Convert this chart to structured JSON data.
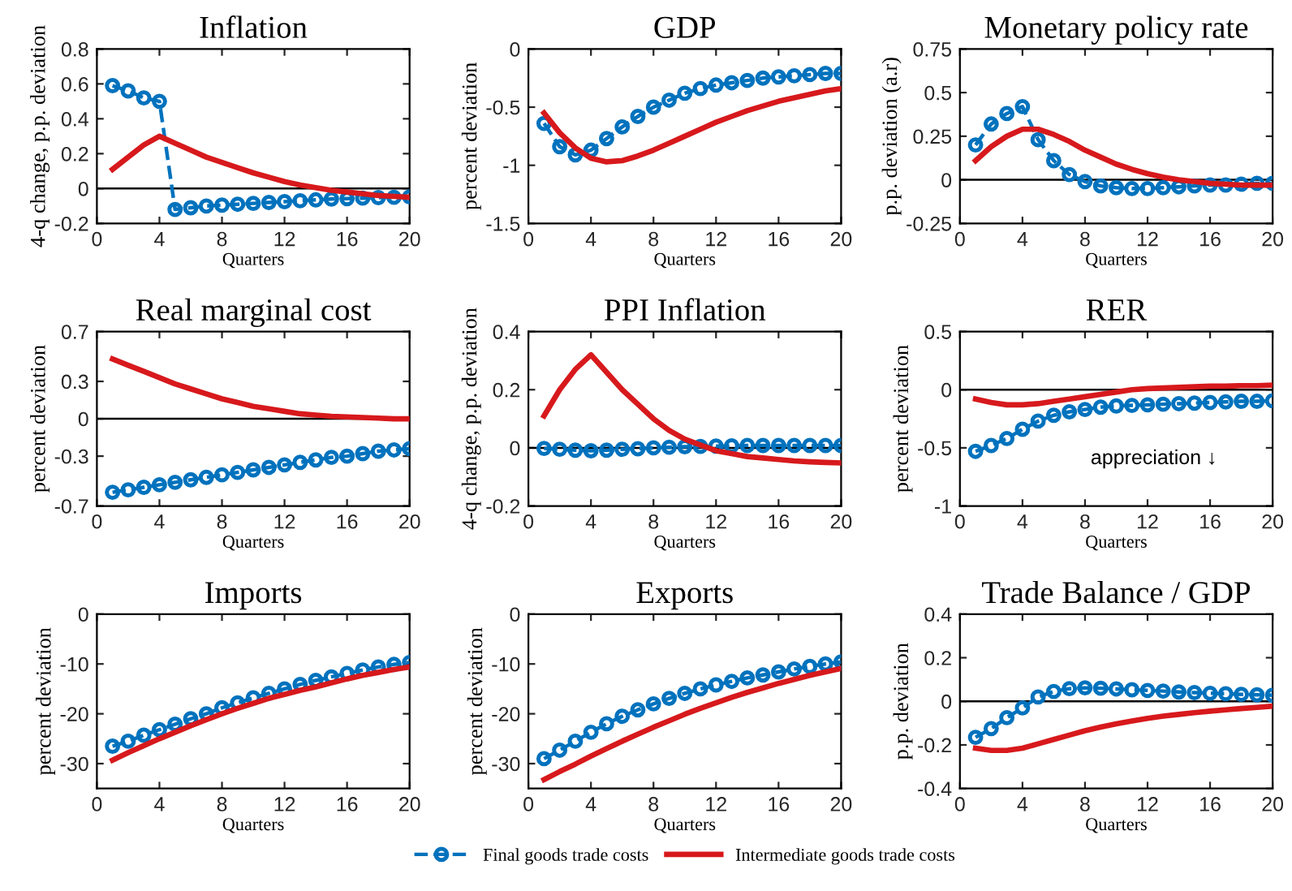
{
  "chart_data": [
    {
      "type": "line",
      "title": "Inflation",
      "xlabel": "Quarters",
      "ylabel": "4-q change, p.p. deviation",
      "x": [
        1,
        2,
        3,
        4,
        5,
        6,
        7,
        8,
        9,
        10,
        11,
        12,
        13,
        14,
        15,
        16,
        17,
        18,
        19,
        20
      ],
      "xlim": [
        0,
        20
      ],
      "xticks": [
        0,
        4,
        8,
        12,
        16,
        20
      ],
      "ylim": [
        -0.2,
        0.8
      ],
      "yticks": [
        -0.2,
        0,
        0.2,
        0.4,
        0.6,
        0.8
      ],
      "ref_lines": [
        {
          "axis": "y",
          "value": 0,
          "color": "#000000"
        }
      ],
      "series": [
        {
          "color": "#0072bd",
          "marker": "circle",
          "line_style": "dashed",
          "values": [
            0.59,
            0.56,
            0.52,
            0.5,
            -0.12,
            -0.11,
            -0.1,
            -0.095,
            -0.09,
            -0.085,
            -0.08,
            -0.075,
            -0.07,
            -0.065,
            -0.06,
            -0.058,
            -0.055,
            -0.052,
            -0.05,
            -0.048
          ]
        },
        {
          "color": "#d7191c",
          "marker": "none",
          "line_style": "solid",
          "values": [
            0.11,
            0.18,
            0.25,
            0.3,
            0.26,
            0.22,
            0.18,
            0.15,
            0.12,
            0.09,
            0.065,
            0.04,
            0.02,
            0.005,
            -0.01,
            -0.02,
            -0.03,
            -0.04,
            -0.045,
            -0.05
          ]
        }
      ]
    },
    {
      "type": "line",
      "title": "GDP",
      "xlabel": "Quarters",
      "ylabel": "percent deviation",
      "x": [
        1,
        2,
        3,
        4,
        5,
        6,
        7,
        8,
        9,
        10,
        11,
        12,
        13,
        14,
        15,
        16,
        17,
        18,
        19,
        20
      ],
      "xlim": [
        0,
        20
      ],
      "xticks": [
        0,
        4,
        8,
        12,
        16,
        20
      ],
      "ylim": [
        -1.5,
        0
      ],
      "yticks": [
        -1.5,
        -1,
        -0.5,
        0
      ],
      "series": [
        {
          "color": "#0072bd",
          "marker": "circle",
          "line_style": "dashed",
          "values": [
            -0.64,
            -0.84,
            -0.91,
            -0.87,
            -0.77,
            -0.67,
            -0.58,
            -0.5,
            -0.44,
            -0.38,
            -0.34,
            -0.31,
            -0.29,
            -0.27,
            -0.25,
            -0.24,
            -0.23,
            -0.22,
            -0.21,
            -0.21
          ]
        },
        {
          "color": "#d7191c",
          "marker": "none",
          "line_style": "solid",
          "values": [
            -0.55,
            -0.72,
            -0.85,
            -0.94,
            -0.97,
            -0.96,
            -0.92,
            -0.87,
            -0.81,
            -0.75,
            -0.69,
            -0.63,
            -0.58,
            -0.53,
            -0.49,
            -0.45,
            -0.42,
            -0.39,
            -0.36,
            -0.34
          ]
        }
      ]
    },
    {
      "type": "line",
      "title": "Monetary policy rate",
      "xlabel": "Quarters",
      "ylabel": "p.p. deviation (a.r)",
      "x": [
        1,
        2,
        3,
        4,
        5,
        6,
        7,
        8,
        9,
        10,
        11,
        12,
        13,
        14,
        15,
        16,
        17,
        18,
        19,
        20
      ],
      "xlim": [
        0,
        20
      ],
      "xticks": [
        0,
        4,
        8,
        12,
        16,
        20
      ],
      "ylim": [
        -0.25,
        0.75
      ],
      "yticks": [
        -0.25,
        0,
        0.25,
        0.5,
        0.75
      ],
      "ref_lines": [
        {
          "axis": "y",
          "value": 0,
          "color": "#000000"
        }
      ],
      "series": [
        {
          "color": "#0072bd",
          "marker": "circle",
          "line_style": "dashed",
          "values": [
            0.2,
            0.32,
            0.38,
            0.42,
            0.23,
            0.11,
            0.03,
            -0.01,
            -0.035,
            -0.045,
            -0.05,
            -0.05,
            -0.045,
            -0.04,
            -0.035,
            -0.03,
            -0.03,
            -0.025,
            -0.02,
            -0.02
          ]
        },
        {
          "color": "#d7191c",
          "marker": "none",
          "line_style": "solid",
          "values": [
            0.11,
            0.19,
            0.25,
            0.29,
            0.29,
            0.26,
            0.22,
            0.17,
            0.13,
            0.09,
            0.06,
            0.035,
            0.015,
            0.0,
            -0.01,
            -0.02,
            -0.025,
            -0.03,
            -0.03,
            -0.03
          ]
        }
      ]
    },
    {
      "type": "line",
      "title": "Real marginal cost",
      "xlabel": "Quarters",
      "ylabel": "percent deviation",
      "x": [
        1,
        2,
        3,
        4,
        5,
        6,
        7,
        8,
        9,
        10,
        11,
        12,
        13,
        14,
        15,
        16,
        17,
        18,
        19,
        20
      ],
      "xlim": [
        0,
        20
      ],
      "xticks": [
        0,
        4,
        8,
        12,
        16,
        20
      ],
      "ylim": [
        -0.7,
        0.7
      ],
      "yticks": [
        -0.7,
        -0.3,
        0,
        0.3,
        0.7
      ],
      "ref_lines": [
        {
          "axis": "y",
          "value": 0,
          "color": "#000000"
        }
      ],
      "series": [
        {
          "color": "#0072bd",
          "marker": "circle",
          "line_style": "dashed",
          "values": [
            -0.59,
            -0.57,
            -0.55,
            -0.53,
            -0.51,
            -0.49,
            -0.47,
            -0.45,
            -0.43,
            -0.41,
            -0.39,
            -0.37,
            -0.35,
            -0.33,
            -0.31,
            -0.3,
            -0.28,
            -0.26,
            -0.25,
            -0.24
          ]
        },
        {
          "color": "#d7191c",
          "marker": "none",
          "line_style": "solid",
          "values": [
            0.48,
            0.43,
            0.38,
            0.33,
            0.28,
            0.24,
            0.2,
            0.16,
            0.13,
            0.1,
            0.08,
            0.06,
            0.04,
            0.03,
            0.02,
            0.015,
            0.01,
            0.005,
            0.0,
            0.0
          ]
        }
      ]
    },
    {
      "type": "line",
      "title": "PPI Inflation",
      "xlabel": "Quarters",
      "ylabel": "4-q change, p.p. deviation",
      "x": [
        1,
        2,
        3,
        4,
        5,
        6,
        7,
        8,
        9,
        10,
        11,
        12,
        13,
        14,
        15,
        16,
        17,
        18,
        19,
        20
      ],
      "xlim": [
        0,
        20
      ],
      "xticks": [
        0,
        4,
        8,
        12,
        16,
        20
      ],
      "ylim": [
        -0.2,
        0.4
      ],
      "yticks": [
        -0.2,
        0,
        0.2,
        0.4
      ],
      "ref_lines": [
        {
          "axis": "y",
          "value": 0,
          "color": "#000000"
        }
      ],
      "series": [
        {
          "color": "#0072bd",
          "marker": "circle",
          "line_style": "dashed",
          "values": [
            -0.002,
            -0.005,
            -0.008,
            -0.01,
            -0.008,
            -0.005,
            -0.003,
            0,
            0.002,
            0.004,
            0.005,
            0.006,
            0.007,
            0.008,
            0.008,
            0.008,
            0.008,
            0.008,
            0.008,
            0.008
          ]
        },
        {
          "color": "#d7191c",
          "marker": "none",
          "line_style": "solid",
          "values": [
            0.11,
            0.2,
            0.27,
            0.32,
            0.26,
            0.2,
            0.15,
            0.1,
            0.06,
            0.03,
            0.01,
            -0.01,
            -0.02,
            -0.03,
            -0.035,
            -0.04,
            -0.045,
            -0.048,
            -0.05,
            -0.052
          ]
        }
      ]
    },
    {
      "type": "line",
      "title": "RER",
      "xlabel": "Quarters",
      "ylabel": "percent deviation",
      "annotations": [
        "appreciation ↓"
      ],
      "x": [
        1,
        2,
        3,
        4,
        5,
        6,
        7,
        8,
        9,
        10,
        11,
        12,
        13,
        14,
        15,
        16,
        17,
        18,
        19,
        20
      ],
      "xlim": [
        0,
        20
      ],
      "xticks": [
        0,
        4,
        8,
        12,
        16,
        20
      ],
      "ylim": [
        -1,
        0.5
      ],
      "yticks": [
        -1,
        -0.5,
        0,
        0.5
      ],
      "ref_lines": [
        {
          "axis": "y",
          "value": 0,
          "color": "#000000"
        }
      ],
      "series": [
        {
          "color": "#0072bd",
          "marker": "circle",
          "line_style": "dashed",
          "values": [
            -0.53,
            -0.48,
            -0.42,
            -0.34,
            -0.27,
            -0.22,
            -0.19,
            -0.17,
            -0.15,
            -0.14,
            -0.135,
            -0.13,
            -0.125,
            -0.12,
            -0.115,
            -0.11,
            -0.105,
            -0.1,
            -0.1,
            -0.095
          ]
        },
        {
          "color": "#d7191c",
          "marker": "none",
          "line_style": "solid",
          "values": [
            -0.08,
            -0.11,
            -0.13,
            -0.13,
            -0.12,
            -0.1,
            -0.08,
            -0.06,
            -0.04,
            -0.02,
            0.0,
            0.01,
            0.015,
            0.02,
            0.025,
            0.03,
            0.03,
            0.035,
            0.035,
            0.04
          ]
        }
      ]
    },
    {
      "type": "line",
      "title": "Imports",
      "xlabel": "Quarters",
      "ylabel": "percent deviation",
      "x": [
        1,
        2,
        3,
        4,
        5,
        6,
        7,
        8,
        9,
        10,
        11,
        12,
        13,
        14,
        15,
        16,
        17,
        18,
        19,
        20
      ],
      "xlim": [
        0,
        20
      ],
      "xticks": [
        0,
        4,
        8,
        12,
        16,
        20
      ],
      "ylim": [
        -35,
        0
      ],
      "yticks": [
        -30,
        -20,
        -10,
        0
      ],
      "series": [
        {
          "color": "#0072bd",
          "marker": "circle",
          "line_style": "dashed",
          "values": [
            -26.5,
            -25.5,
            -24.3,
            -23.2,
            -22.1,
            -21.0,
            -20.0,
            -18.8,
            -17.8,
            -16.8,
            -15.9,
            -15.0,
            -14.1,
            -13.3,
            -12.6,
            -11.9,
            -11.2,
            -10.6,
            -10.1,
            -9.7
          ]
        },
        {
          "color": "#d7191c",
          "marker": "none",
          "line_style": "solid",
          "values": [
            -29.3,
            -27.8,
            -26.4,
            -25.0,
            -23.7,
            -22.4,
            -21.2,
            -20.0,
            -18.9,
            -17.9,
            -16.9,
            -16.1,
            -15.3,
            -14.6,
            -13.8,
            -13.0,
            -12.3,
            -11.7,
            -11.1,
            -10.6
          ]
        }
      ]
    },
    {
      "type": "line",
      "title": "Exports",
      "xlabel": "Quarters",
      "ylabel": "percent deviation",
      "legend": "bottom",
      "x": [
        1,
        2,
        3,
        4,
        5,
        6,
        7,
        8,
        9,
        10,
        11,
        12,
        13,
        14,
        15,
        16,
        17,
        18,
        19,
        20
      ],
      "xlim": [
        0,
        20
      ],
      "xticks": [
        0,
        4,
        8,
        12,
        16,
        20
      ],
      "ylim": [
        -35,
        0
      ],
      "yticks": [
        -30,
        -20,
        -10,
        0
      ],
      "series": [
        {
          "name": "Final goods trade costs",
          "color": "#0072bd",
          "marker": "circle",
          "line_style": "dashed",
          "values": [
            -29,
            -27.3,
            -25.5,
            -23.7,
            -22,
            -20.5,
            -19.2,
            -18,
            -16.9,
            -15.9,
            -15,
            -14.2,
            -13.5,
            -12.8,
            -12.2,
            -11.6,
            -11.0,
            -10.5,
            -10.0,
            -9.6
          ]
        },
        {
          "name": "Intermediate goods trade costs",
          "color": "#d7191c",
          "marker": "none",
          "line_style": "solid",
          "values": [
            -33.2,
            -31.6,
            -30.1,
            -28.5,
            -27.0,
            -25.5,
            -24.1,
            -22.7,
            -21.4,
            -20.1,
            -18.9,
            -17.8,
            -16.7,
            -15.7,
            -14.8,
            -13.9,
            -13.1,
            -12.3,
            -11.6,
            -10.9
          ]
        }
      ]
    },
    {
      "type": "line",
      "title": "Trade Balance / GDP",
      "xlabel": "Quarters",
      "ylabel": "p.p. deviation",
      "x": [
        1,
        2,
        3,
        4,
        5,
        6,
        7,
        8,
        9,
        10,
        11,
        12,
        13,
        14,
        15,
        16,
        17,
        18,
        19,
        20
      ],
      "xlim": [
        0,
        20
      ],
      "xticks": [
        0,
        4,
        8,
        12,
        16,
        20
      ],
      "ylim": [
        -0.4,
        0.4
      ],
      "yticks": [
        -0.4,
        -0.2,
        0,
        0.2,
        0.4
      ],
      "ref_lines": [
        {
          "axis": "y",
          "value": 0,
          "color": "#000000"
        }
      ],
      "series": [
        {
          "color": "#0072bd",
          "marker": "circle",
          "line_style": "dashed",
          "values": [
            -0.165,
            -0.125,
            -0.075,
            -0.03,
            0.02,
            0.045,
            0.058,
            0.062,
            0.06,
            0.057,
            0.053,
            0.05,
            0.047,
            0.043,
            0.04,
            0.037,
            0.035,
            0.032,
            0.03,
            0.028
          ]
        },
        {
          "color": "#d7191c",
          "marker": "none",
          "line_style": "solid",
          "values": [
            -0.215,
            -0.225,
            -0.225,
            -0.215,
            -0.195,
            -0.175,
            -0.155,
            -0.135,
            -0.118,
            -0.103,
            -0.09,
            -0.078,
            -0.068,
            -0.06,
            -0.052,
            -0.045,
            -0.039,
            -0.033,
            -0.028,
            -0.022
          ]
        }
      ]
    }
  ]
}
